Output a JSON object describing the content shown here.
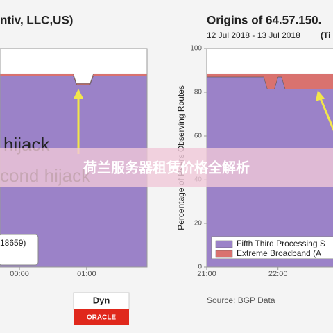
{
  "chart_data": [
    {
      "type": "area",
      "title": "ntiv, LLC,US)",
      "x": [
        -0.29,
        0.8,
        0.85,
        1.05,
        1.1,
        1.9
      ],
      "series": [
        {
          "color": "#9b82c8",
          "values": [
            87.5,
            87.5,
            83.5,
            83.5,
            87.5,
            87.5
          ]
        },
        {
          "color": "#d9726f",
          "values": [
            1,
            1,
            0.5,
            0.5,
            1,
            1
          ]
        }
      ],
      "xlim": [
        -0.29,
        1.9
      ],
      "ylim": [
        0,
        100
      ],
      "xticks": [
        {
          "value": 0,
          "label": "00:00"
        },
        {
          "value": 1,
          "label": "01:00"
        }
      ],
      "annotations": [
        "hijack",
        "cond hijack",
        "18659)"
      ]
    },
    {
      "type": "area",
      "title": "Origins of 64.57.150.",
      "subtitle": "12 Jul 2018 - 13 Jul 2018",
      "y_label": "Percentage of Peers Observing Routes",
      "x": [
        21,
        21.8,
        21.85,
        21.95,
        22.0,
        22.05,
        22.1,
        22.85
      ],
      "series": [
        {
          "name": "Fifth Third Processing S",
          "color": "#9b82c8",
          "values": [
            87,
            87,
            81.5,
            81.5,
            87,
            87,
            81.5,
            81.5
          ]
        },
        {
          "name": "Extreme Broadband (A",
          "color": "#d9726f",
          "values": [
            1.5,
            1.5,
            7,
            7,
            1.5,
            1.5,
            7,
            7
          ]
        }
      ],
      "xlim": [
        21,
        22.85
      ],
      "ylim": [
        0,
        100
      ],
      "xticks": [
        {
          "value": 21,
          "label": "21:00"
        },
        {
          "value": 22,
          "label": "22:00"
        }
      ],
      "yticks": [
        0,
        20,
        40,
        60,
        80,
        100
      ],
      "annotations": [
        "(Ti",
        "Source: BGP Data"
      ]
    }
  ],
  "logos": [
    "Dyn",
    "ORACLE"
  ],
  "banner": "荷兰服务器租赁价格全解析"
}
